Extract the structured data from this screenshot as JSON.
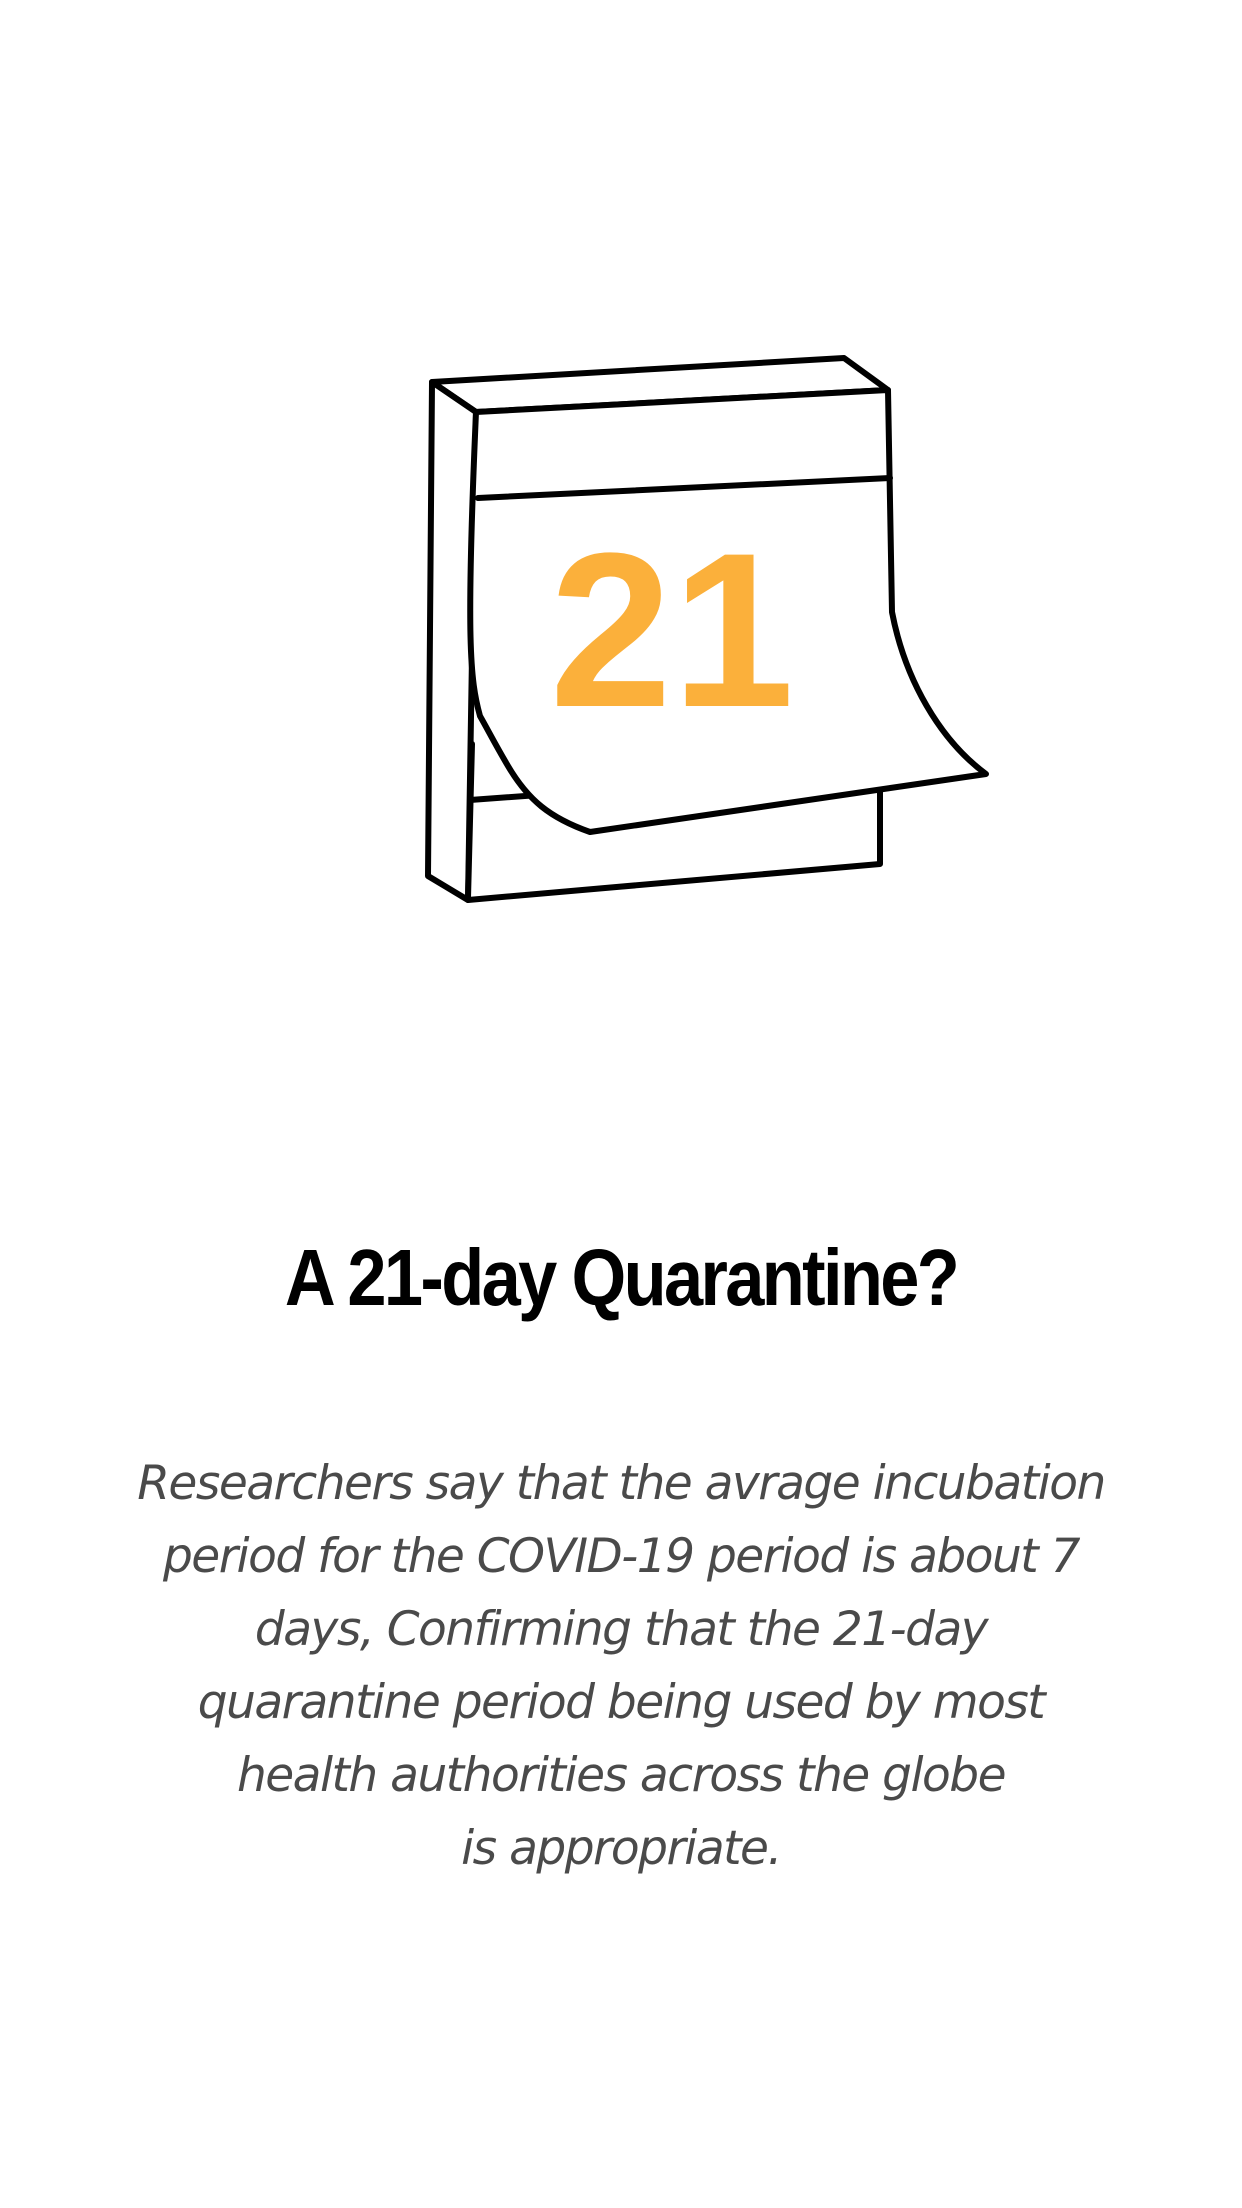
{
  "illustration": {
    "icon": "tear-off-calendar-icon",
    "day_number": "21",
    "number_color": "#FBB03B",
    "outline_color": "#000000"
  },
  "title": "A 21-day Quarantine?",
  "body_lines": [
    "Researchers say that the avrage incubation",
    "period for the COVID-19 period is about 7",
    "days, Confirming that the 21-day",
    "quarantine period being used by most",
    "health authorities across the globe",
    "is appropriate."
  ],
  "colors": {
    "background": "#FFFFFF",
    "title": "#000000",
    "body": "#4A4A4A"
  }
}
